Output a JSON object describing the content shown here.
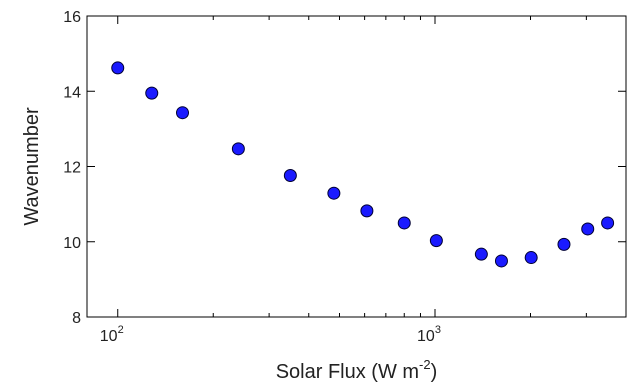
{
  "chart_data": {
    "type": "scatter",
    "title": "",
    "xlabel": "Solar Flux (W m",
    "xlabel_sup": "-2",
    "xlabel_close": ")",
    "ylabel": "Wavenumber",
    "x_scale": "log",
    "xlim": [
      80,
      4000
    ],
    "ylim": [
      8,
      16
    ],
    "grid": false,
    "x_ticks_major": [
      {
        "value": 100,
        "base": "10",
        "exp": "2"
      },
      {
        "value": 1000,
        "base": "10",
        "exp": "3"
      }
    ],
    "x_ticks_minor": [
      200,
      300,
      400,
      500,
      600,
      700,
      800,
      900,
      2000,
      3000
    ],
    "y_ticks": [
      {
        "value": 8,
        "label": "8"
      },
      {
        "value": 10,
        "label": "10"
      },
      {
        "value": 12,
        "label": "12"
      },
      {
        "value": 14,
        "label": "14"
      },
      {
        "value": 16,
        "label": "16"
      }
    ],
    "marker_color": "#1a1aff",
    "marker_edge": "#000033",
    "points": [
      {
        "x": 100,
        "y": 14.62
      },
      {
        "x": 128,
        "y": 13.95
      },
      {
        "x": 160,
        "y": 13.43
      },
      {
        "x": 240,
        "y": 12.47
      },
      {
        "x": 350,
        "y": 11.76
      },
      {
        "x": 480,
        "y": 11.29
      },
      {
        "x": 610,
        "y": 10.82
      },
      {
        "x": 800,
        "y": 10.5
      },
      {
        "x": 1010,
        "y": 10.03
      },
      {
        "x": 1400,
        "y": 9.67
      },
      {
        "x": 1620,
        "y": 9.49
      },
      {
        "x": 2010,
        "y": 9.58
      },
      {
        "x": 2550,
        "y": 9.93
      },
      {
        "x": 3030,
        "y": 10.34
      },
      {
        "x": 3500,
        "y": 10.5
      }
    ]
  }
}
